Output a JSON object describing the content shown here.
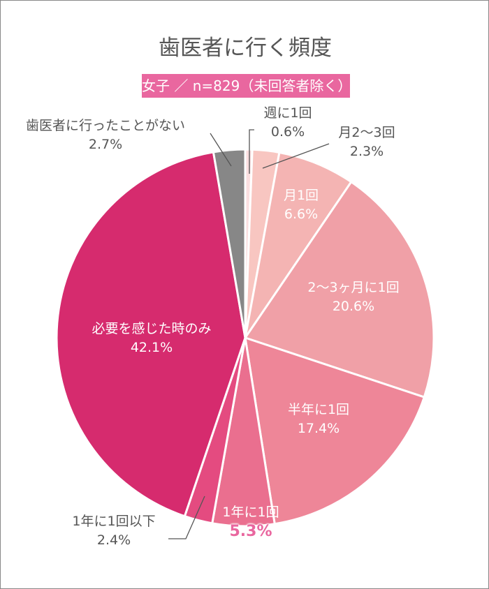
{
  "chart_data": {
    "type": "pie",
    "title": "歯医者に行く頻度",
    "subtitle": "女子 ／ n=829（未回答者除く）",
    "slices": [
      {
        "label": "週に1回",
        "value": 0.6,
        "text": "0.6%",
        "color": "#fbdfe0"
      },
      {
        "label": "月2〜3回",
        "value": 2.3,
        "text": "2.3%",
        "color": "#f8c6c1"
      },
      {
        "label": "月1回",
        "value": 6.6,
        "text": "6.6%",
        "color": "#f4b4b3"
      },
      {
        "label": "2〜3ヶ月に1回",
        "value": 20.6,
        "text": "20.6%",
        "color": "#f0a0a7"
      },
      {
        "label": "半年に1回",
        "value": 17.4,
        "text": "17.4%",
        "color": "#ee8698"
      },
      {
        "label": "1年に1回",
        "value": 5.3,
        "text": "5.3%",
        "color": "#ea6f8f"
      },
      {
        "label": "1年に1回以下",
        "value": 2.4,
        "text": "2.4%",
        "color": "#e44b80"
      },
      {
        "label": "必要を感じた時のみ",
        "value": 42.1,
        "text": "42.1%",
        "color": "#d62b6e"
      },
      {
        "label": "歯医者に行ったことがない",
        "value": 2.7,
        "text": "2.7%",
        "color": "#878787"
      }
    ],
    "start": "top",
    "direction": "clockwise",
    "highlight": "1年に1回"
  }
}
